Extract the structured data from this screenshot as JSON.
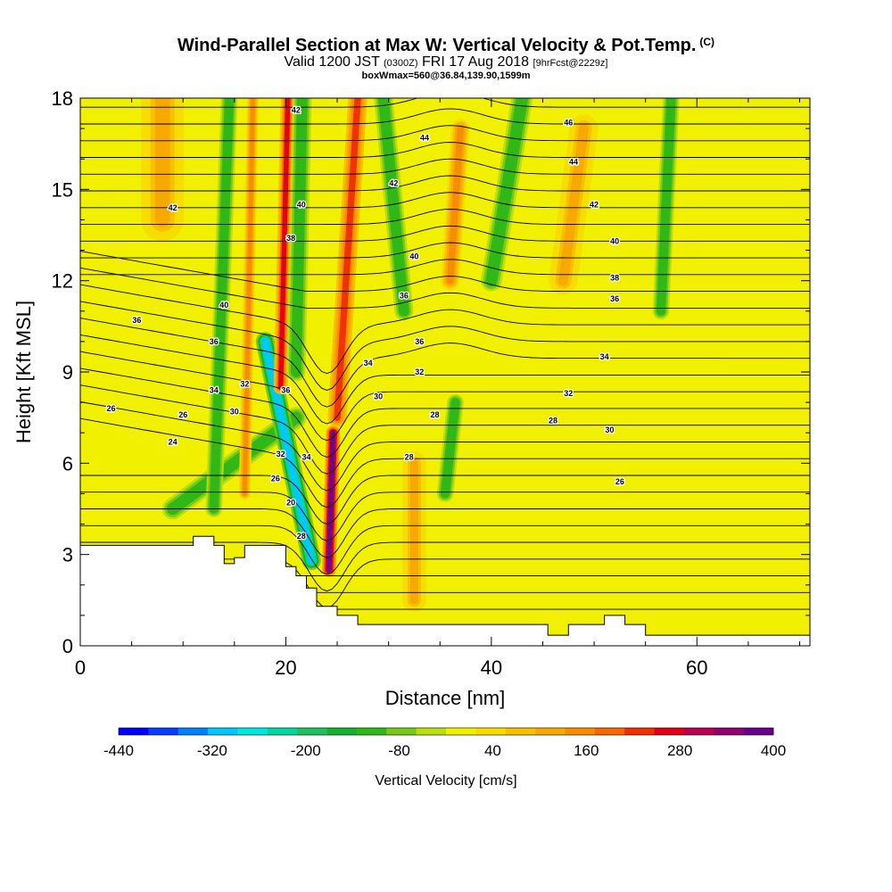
{
  "header": {
    "title": "Wind-Parallel Section at Max W: Vertical Velocity & Pot.Temp.",
    "copyright": "(C)",
    "valid_prefix": "Valid 1200 JST",
    "valid_utc": "(0300Z)",
    "valid_date": "FRI 17 Aug 2018",
    "forecast": "[9hrFcst@2229z]",
    "box_info": "boxWmax=560@36.84,139.90,1599m"
  },
  "chart_data": {
    "type": "heatmap",
    "title": "Wind-Parallel Section at Max W: Vertical Velocity & Pot.Temp.",
    "xlabel": "Distance [nm]",
    "ylabel": "Height [Kft MSL]",
    "xlim": [
      0,
      71
    ],
    "ylim": [
      0,
      18
    ],
    "x_ticks": [
      "0",
      "20",
      "40",
      "60"
    ],
    "y_ticks": [
      "0",
      "3",
      "6",
      "9",
      "12",
      "15",
      "18"
    ],
    "colorbar": {
      "label": "Vertical Velocity [cm/s]",
      "tick_labels": [
        "-440",
        "-320",
        "-200",
        "-80",
        "40",
        "160",
        "280",
        "400"
      ],
      "levels": [
        -440,
        -400,
        -360,
        -320,
        -280,
        -240,
        -200,
        -160,
        -120,
        -80,
        -40,
        0,
        40,
        80,
        120,
        160,
        200,
        240,
        280,
        320,
        360,
        400
      ],
      "colors": [
        "#0000ff",
        "#0a3cff",
        "#0080ff",
        "#00c8ff",
        "#00e8e0",
        "#00d8a0",
        "#20c060",
        "#18b030",
        "#30b818",
        "#78c818",
        "#b8e010",
        "#f0f000",
        "#f8dc00",
        "#f8c000",
        "#f8a800",
        "#f88c00",
        "#f86800",
        "#f03000",
        "#e00018",
        "#b80050",
        "#900070",
        "#6a0090"
      ]
    },
    "background_velocity_cm_s": 30,
    "terrain_kft": [
      [
        0,
        3.3
      ],
      [
        11,
        3.3
      ],
      [
        11,
        3.6
      ],
      [
        13,
        3.6
      ],
      [
        13,
        3.3
      ],
      [
        14,
        3.3
      ],
      [
        14,
        2.7
      ],
      [
        15,
        2.7
      ],
      [
        15,
        2.9
      ],
      [
        16,
        2.9
      ],
      [
        16,
        3.3
      ],
      [
        20,
        3.3
      ],
      [
        20,
        2.6
      ],
      [
        21,
        2.6
      ],
      [
        21,
        2.3
      ],
      [
        22,
        2.3
      ],
      [
        22,
        1.9
      ],
      [
        23,
        1.9
      ],
      [
        23,
        1.3
      ],
      [
        25,
        1.3
      ],
      [
        25,
        1.0
      ],
      [
        27,
        1.0
      ],
      [
        27,
        0.7
      ],
      [
        45.5,
        0.7
      ],
      [
        45.5,
        0.35
      ],
      [
        47.5,
        0.35
      ],
      [
        47.5,
        0.7
      ],
      [
        51,
        0.7
      ],
      [
        51,
        1.0
      ],
      [
        53,
        1.0
      ],
      [
        53,
        0.7
      ],
      [
        55,
        0.7
      ],
      [
        55,
        0.35
      ],
      [
        71,
        0.35
      ]
    ],
    "velocity_features": [
      {
        "x": [
          9,
          21
        ],
        "z": [
          4.5,
          7.5
        ],
        "halfwidth_nm": 0.9,
        "w": -120
      },
      {
        "x": [
          13,
          14.5
        ],
        "z": [
          4.5,
          18
        ],
        "halfwidth_nm": 0.7,
        "w": -120
      },
      {
        "x": [
          16,
          16.8
        ],
        "z": [
          5,
          18
        ],
        "halfwidth_nm": 0.5,
        "w": 160
      },
      {
        "x": [
          18,
          22.5
        ],
        "z": [
          10,
          2.8
        ],
        "halfwidth_nm": 0.8,
        "w": -300
      },
      {
        "x": [
          19.5,
          20.2
        ],
        "z": [
          8.5,
          18
        ],
        "halfwidth_nm": 0.6,
        "w": 280
      },
      {
        "x": [
          21,
          21.6
        ],
        "z": [
          9,
          18
        ],
        "halfwidth_nm": 0.8,
        "w": -120
      },
      {
        "x": [
          24.2,
          24.6
        ],
        "z": [
          2.5,
          7
        ],
        "halfwidth_nm": 0.6,
        "w": 400
      },
      {
        "x": [
          25,
          27
        ],
        "z": [
          7.5,
          18
        ],
        "halfwidth_nm": 0.8,
        "w": 240
      },
      {
        "x": [
          31.5,
          29.5
        ],
        "z": [
          11,
          18
        ],
        "halfwidth_nm": 0.8,
        "w": -120
      },
      {
        "x": [
          35.5,
          36.5
        ],
        "z": [
          5,
          8
        ],
        "halfwidth_nm": 0.7,
        "w": -120
      },
      {
        "x": [
          32.5,
          32.5
        ],
        "z": [
          1.5,
          6
        ],
        "halfwidth_nm": 1.0,
        "w": 120
      },
      {
        "x": [
          40,
          43
        ],
        "z": [
          12,
          18
        ],
        "halfwidth_nm": 0.9,
        "w": -120
      },
      {
        "x": [
          56.5,
          57.5
        ],
        "z": [
          11,
          18
        ],
        "halfwidth_nm": 0.7,
        "w": -120
      },
      {
        "x": [
          8,
          8
        ],
        "z": [
          14,
          18
        ],
        "halfwidth_nm": 1.8,
        "w": 120
      },
      {
        "x": [
          36,
          37
        ],
        "z": [
          12,
          17
        ],
        "halfwidth_nm": 0.8,
        "w": 160
      },
      {
        "x": [
          47,
          49
        ],
        "z": [
          12,
          17
        ],
        "halfwidth_nm": 1.2,
        "w": 120
      }
    ],
    "theta_contours_K": [
      {
        "value": 24,
        "label_at": [
          9,
          6.7
        ]
      },
      {
        "value": 26,
        "label_at": [
          3,
          7.8
        ]
      },
      {
        "value": 26,
        "label_at": [
          52.5,
          5.4
        ]
      },
      {
        "value": 26,
        "label_at": [
          10,
          7.6
        ]
      },
      {
        "value": 26,
        "label_at": [
          19,
          5.5
        ]
      },
      {
        "value": 28,
        "label_at": [
          32,
          6.2
        ]
      },
      {
        "value": 28,
        "label_at": [
          34.5,
          7.6
        ]
      },
      {
        "value": 28,
        "label_at": [
          46,
          7.4
        ]
      },
      {
        "value": 28,
        "label_at": [
          21.5,
          3.6
        ]
      },
      {
        "value": 30,
        "label_at": [
          15,
          7.7
        ]
      },
      {
        "value": 30,
        "label_at": [
          29,
          8.2
        ]
      },
      {
        "value": 30,
        "label_at": [
          51.5,
          7.1
        ]
      },
      {
        "value": 20,
        "label_at": [
          20.5,
          4.7
        ]
      },
      {
        "value": 32,
        "label_at": [
          16,
          8.6
        ]
      },
      {
        "value": 32,
        "label_at": [
          19.5,
          6.3
        ]
      },
      {
        "value": 32,
        "label_at": [
          33,
          9.0
        ]
      },
      {
        "value": 32,
        "label_at": [
          47.5,
          8.3
        ]
      },
      {
        "value": 34,
        "label_at": [
          13,
          8.4
        ]
      },
      {
        "value": 34,
        "label_at": [
          22,
          6.2
        ]
      },
      {
        "value": 34,
        "label_at": [
          28,
          9.3
        ]
      },
      {
        "value": 34,
        "label_at": [
          51,
          9.5
        ]
      },
      {
        "value": 36,
        "label_at": [
          5.5,
          10.7
        ]
      },
      {
        "value": 36,
        "label_at": [
          13,
          10.0
        ]
      },
      {
        "value": 36,
        "label_at": [
          20,
          8.4
        ]
      },
      {
        "value": 36,
        "label_at": [
          31.5,
          11.5
        ]
      },
      {
        "value": 36,
        "label_at": [
          33,
          10.0
        ]
      },
      {
        "value": 36,
        "label_at": [
          52,
          11.4
        ]
      },
      {
        "value": 38,
        "label_at": [
          52,
          12.1
        ]
      },
      {
        "value": 38,
        "label_at": [
          20.5,
          13.4
        ]
      },
      {
        "value": 40,
        "label_at": [
          14,
          11.2
        ]
      },
      {
        "value": 40,
        "label_at": [
          21.5,
          14.5
        ]
      },
      {
        "value": 40,
        "label_at": [
          32.5,
          12.8
        ]
      },
      {
        "value": 40,
        "label_at": [
          52,
          13.3
        ]
      },
      {
        "value": 42,
        "label_at": [
          9,
          14.4
        ]
      },
      {
        "value": 42,
        "label_at": [
          30.5,
          15.2
        ]
      },
      {
        "value": 42,
        "label_at": [
          50,
          14.5
        ]
      },
      {
        "value": 42,
        "label_at": [
          21,
          17.6
        ]
      },
      {
        "value": 44,
        "label_at": [
          33.5,
          16.7
        ]
      },
      {
        "value": 44,
        "label_at": [
          48,
          15.9
        ]
      },
      {
        "value": 46,
        "label_at": [
          47.5,
          17.2
        ]
      }
    ]
  }
}
